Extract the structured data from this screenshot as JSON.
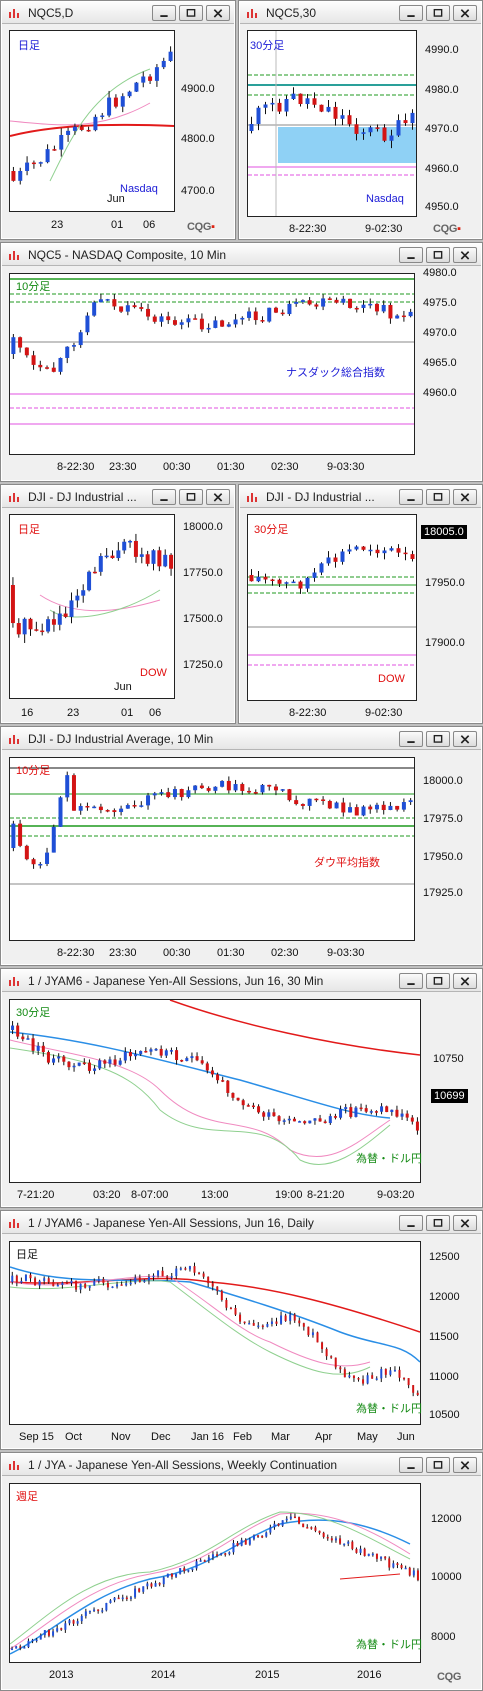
{
  "colors": {
    "up": "#1f4fd6",
    "down": "#d31414",
    "ma_long": "#e21a1a",
    "ma_mid": "#2a8ee6",
    "ma_short": "#8fd08f",
    "pink": "#f08ac0",
    "hline_green": "#1f9a1f",
    "hline_magenta": "#e050e0"
  },
  "window_buttons": [
    "minimize-icon",
    "restore-icon",
    "close-icon"
  ],
  "panel1": {
    "title": "NQC5,D",
    "label_period": "日足",
    "label_name": "Nasdaq",
    "yticks": [
      "4900.0",
      "4800.0",
      "4700.0"
    ],
    "xticks": [
      "23",
      "01",
      "06"
    ],
    "xsub": "Jun",
    "logo": "CQG"
  },
  "panel2": {
    "title": "NQC5,30",
    "label_period": "30分足",
    "label_name": "Nasdaq",
    "yticks": [
      "4990.0",
      "4980.0",
      "4970.0",
      "4960.0",
      "4950.0"
    ],
    "xticks": [
      "8-22:30",
      "9-02:30"
    ],
    "logo": "CQG"
  },
  "panel3": {
    "title": "NQC5 - NASDAQ Composite, 10 Min",
    "label_period": "10分足",
    "label_name": "ナスダック総合指数",
    "yticks": [
      "4980.0",
      "4975.0",
      "4970.0",
      "4965.0",
      "4960.0"
    ],
    "xticks": [
      "8-22:30",
      "23:30",
      "00:30",
      "01:30",
      "02:30",
      "9-03:30"
    ]
  },
  "panel4": {
    "title": "DJI - DJ Industrial ...",
    "label_period": "日足",
    "label_name": "DOW",
    "yticks": [
      "18000.0",
      "17750.0",
      "17500.0",
      "17250.0"
    ],
    "xticks": [
      "16",
      "23",
      "01",
      "06"
    ],
    "xsub": "Jun"
  },
  "panel5": {
    "title": "DJI - DJ Industrial ...",
    "label_period": "30分足",
    "label_name": "DOW",
    "yticks": [
      "18005.0",
      "17950.0",
      "17900.0"
    ],
    "xticks": [
      "8-22:30",
      "9-02:30"
    ]
  },
  "panel6": {
    "title": "DJI - DJ Industrial Average, 10 Min",
    "label_period": "10分足",
    "label_name": "ダウ平均指数",
    "yticks": [
      "18000.0",
      "17975.0",
      "17950.0",
      "17925.0"
    ],
    "xticks": [
      "8-22:30",
      "23:30",
      "00:30",
      "01:30",
      "02:30",
      "9-03:30"
    ]
  },
  "panel7": {
    "title": "1 / JYAM6 - Japanese Yen-All Sessions, Jun 16, 30 Min",
    "label_period": "30分足",
    "label_name": "為替・ドル円",
    "yticks": [
      "10750",
      "10699"
    ],
    "xticks": [
      "7-21:20",
      "03:20",
      "8-07:00",
      "13:00",
      "19:00",
      "8-21:20",
      "9-03:20"
    ]
  },
  "panel8": {
    "title": "1 / JYAM6 - Japanese Yen-All Sessions, Jun 16, Daily",
    "label_period": "日足",
    "label_name": "為替・ドル円",
    "yticks": [
      "12500",
      "12000",
      "11500",
      "11000",
      "10500"
    ],
    "xticks": [
      "Sep 15",
      "Oct",
      "Nov",
      "Dec",
      "Jan 16",
      "Feb",
      "Mar",
      "Apr",
      "May",
      "Jun"
    ]
  },
  "panel9": {
    "title": "1 / JYA - Japanese Yen-All Sessions, Weekly Continuation",
    "label_period": "週足",
    "label_name": "為替・ドル円",
    "yticks": [
      "12000",
      "10000",
      "8000"
    ],
    "xticks": [
      "2013",
      "2014",
      "2015",
      "2016"
    ],
    "logo": "CQG"
  }
}
